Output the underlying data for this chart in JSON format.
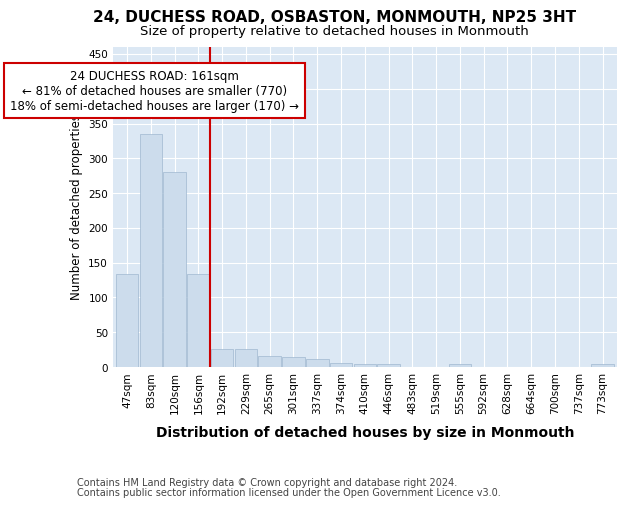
{
  "title": "24, DUCHESS ROAD, OSBASTON, MONMOUTH, NP25 3HT",
  "subtitle": "Size of property relative to detached houses in Monmouth",
  "xlabel": "Distribution of detached houses by size in Monmouth",
  "ylabel": "Number of detached properties",
  "bar_color": "#ccdcec",
  "bar_edge_color": "#a0b8d0",
  "background_color": "#dce8f4",
  "grid_color": "#ffffff",
  "annotation_line_color": "#cc0000",
  "annotation_box_color": "#cc0000",
  "annotation_text": "24 DUCHESS ROAD: 161sqm\n← 81% of detached houses are smaller (770)\n18% of semi-detached houses are larger (170) →",
  "property_size": 161,
  "property_bin_index": 3,
  "categories": [
    "47sqm",
    "83sqm",
    "120sqm",
    "156sqm",
    "192sqm",
    "229sqm",
    "265sqm",
    "301sqm",
    "337sqm",
    "374sqm",
    "410sqm",
    "446sqm",
    "483sqm",
    "519sqm",
    "555sqm",
    "592sqm",
    "628sqm",
    "664sqm",
    "700sqm",
    "737sqm",
    "773sqm"
  ],
  "values": [
    134,
    335,
    280,
    133,
    26,
    26,
    16,
    15,
    11,
    6,
    5,
    4,
    0,
    0,
    4,
    0,
    0,
    0,
    0,
    0,
    4
  ],
  "ylim": [
    0,
    460
  ],
  "yticks": [
    0,
    50,
    100,
    150,
    200,
    250,
    300,
    350,
    400,
    450
  ],
  "footer_line1": "Contains HM Land Registry data © Crown copyright and database right 2024.",
  "footer_line2": "Contains public sector information licensed under the Open Government Licence v3.0.",
  "title_fontsize": 11,
  "subtitle_fontsize": 9.5,
  "xlabel_fontsize": 10,
  "ylabel_fontsize": 8.5,
  "tick_fontsize": 7.5,
  "footer_fontsize": 7,
  "ann_fontsize": 8.5
}
